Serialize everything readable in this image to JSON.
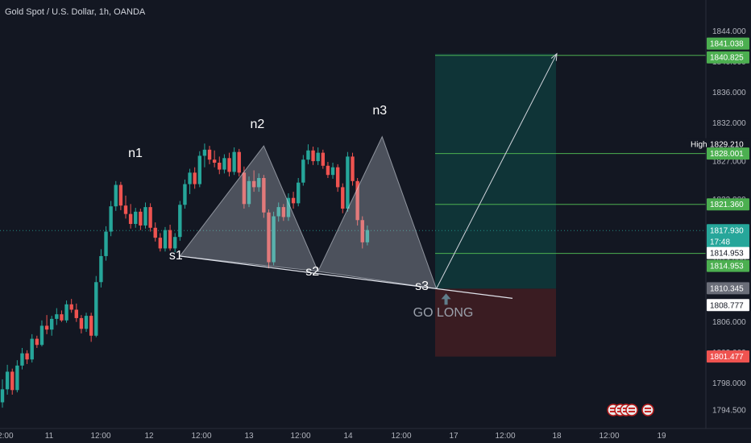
{
  "title": "Gold Spot / U.S. Dollar, 1h, OANDA",
  "chart_data": {
    "type": "candlestick",
    "symbol": "XAUUSD",
    "ylim": [
      1792.5,
      1847
    ],
    "y_ticks": [
      1844.0,
      1840.0,
      1836.0,
      1832.0,
      1827.0,
      1822.0,
      1818.0,
      1814.0,
      1810.0,
      1806.0,
      1802.0,
      1798.0,
      1794.5
    ],
    "x_ticks": [
      "12:00",
      "11",
      "12:00",
      "12",
      "12:00",
      "13",
      "12:00",
      "14",
      "12:00",
      "17",
      "12:00",
      "18",
      "12:00",
      "19"
    ],
    "ohlc": [
      [
        1795.5,
        1798.5,
        1794.8,
        1797.2
      ],
      [
        1797.2,
        1800.4,
        1796.5,
        1799.5
      ],
      [
        1799.5,
        1799.9,
        1796.5,
        1797.1
      ],
      [
        1797.1,
        1801.0,
        1796.8,
        1800.3
      ],
      [
        1800.3,
        1802.6,
        1799.8,
        1801.9
      ],
      [
        1801.9,
        1802.3,
        1800.5,
        1801.1
      ],
      [
        1801.1,
        1804.4,
        1800.7,
        1803.8
      ],
      [
        1803.8,
        1804.2,
        1802.6,
        1803.0
      ],
      [
        1803.0,
        1806.2,
        1802.8,
        1805.5
      ],
      [
        1805.5,
        1806.9,
        1804.4,
        1805.0
      ],
      [
        1805.0,
        1806.8,
        1804.2,
        1806.4
      ],
      [
        1806.4,
        1807.8,
        1805.6,
        1807.0
      ],
      [
        1807.0,
        1807.5,
        1806.0,
        1806.2
      ],
      [
        1806.2,
        1808.8,
        1805.9,
        1808.3
      ],
      [
        1808.3,
        1809.0,
        1807.2,
        1807.6
      ],
      [
        1807.6,
        1808.4,
        1806.0,
        1806.5
      ],
      [
        1806.5,
        1806.9,
        1804.5,
        1805.1
      ],
      [
        1805.1,
        1807.2,
        1804.7,
        1806.8
      ],
      [
        1806.8,
        1807.2,
        1803.4,
        1804.2
      ],
      [
        1804.2,
        1812.0,
        1804.0,
        1811.2
      ],
      [
        1811.2,
        1815.5,
        1810.5,
        1814.6
      ],
      [
        1814.6,
        1818.5,
        1814.0,
        1817.8
      ],
      [
        1817.8,
        1821.8,
        1817.2,
        1821.1
      ],
      [
        1821.1,
        1824.4,
        1820.5,
        1823.9
      ],
      [
        1823.9,
        1824.3,
        1820.6,
        1821.2
      ],
      [
        1821.2,
        1822.5,
        1819.5,
        1820.1
      ],
      [
        1820.1,
        1821.4,
        1818.2,
        1818.8
      ],
      [
        1818.8,
        1820.9,
        1818.3,
        1820.4
      ],
      [
        1820.4,
        1820.8,
        1818.0,
        1818.6
      ],
      [
        1818.6,
        1821.6,
        1818.2,
        1821.0
      ],
      [
        1821.0,
        1821.5,
        1817.8,
        1818.3
      ],
      [
        1818.3,
        1819.0,
        1816.5,
        1817.0
      ],
      [
        1817.0,
        1817.6,
        1815.2,
        1815.6
      ],
      [
        1815.6,
        1818.4,
        1815.2,
        1818.0
      ],
      [
        1818.0,
        1818.7,
        1815.3,
        1815.6
      ],
      [
        1815.6,
        1817.6,
        1815.1,
        1817.1
      ],
      [
        1817.1,
        1821.8,
        1816.6,
        1821.3
      ],
      [
        1821.3,
        1824.6,
        1820.8,
        1824.0
      ],
      [
        1824.0,
        1826.0,
        1822.7,
        1825.5
      ],
      [
        1825.5,
        1826.2,
        1823.4,
        1824.0
      ],
      [
        1824.0,
        1828.3,
        1823.6,
        1827.7
      ],
      [
        1827.7,
        1829.3,
        1826.2,
        1828.5
      ],
      [
        1828.5,
        1829.0,
        1826.6,
        1827.2
      ],
      [
        1827.2,
        1828.4,
        1826.2,
        1826.8
      ],
      [
        1826.8,
        1827.6,
        1825.3,
        1825.9
      ],
      [
        1825.9,
        1827.9,
        1825.4,
        1827.4
      ],
      [
        1827.4,
        1828.1,
        1825.0,
        1825.6
      ],
      [
        1825.6,
        1828.8,
        1825.2,
        1828.2
      ],
      [
        1828.2,
        1828.6,
        1825.0,
        1825.5
      ],
      [
        1825.5,
        1826.3,
        1820.8,
        1821.4
      ],
      [
        1821.4,
        1825.0,
        1821.0,
        1824.4
      ],
      [
        1824.4,
        1825.8,
        1823.0,
        1823.6
      ],
      [
        1823.6,
        1825.4,
        1823.0,
        1824.8
      ],
      [
        1824.8,
        1825.2,
        1819.6,
        1820.3
      ],
      [
        1820.3,
        1820.7,
        1813.0,
        1813.8
      ],
      [
        1813.8,
        1820.4,
        1813.4,
        1819.8
      ],
      [
        1819.8,
        1821.6,
        1819.1,
        1821.0
      ],
      [
        1821.0,
        1821.4,
        1819.2,
        1819.7
      ],
      [
        1819.7,
        1822.8,
        1819.2,
        1822.2
      ],
      [
        1822.2,
        1823.0,
        1820.8,
        1821.5
      ],
      [
        1821.5,
        1824.8,
        1821.1,
        1824.2
      ],
      [
        1824.2,
        1827.8,
        1823.8,
        1827.2
      ],
      [
        1827.2,
        1829.2,
        1826.6,
        1828.4
      ],
      [
        1828.4,
        1828.9,
        1826.5,
        1827.0
      ],
      [
        1827.0,
        1828.8,
        1826.5,
        1828.1
      ],
      [
        1828.1,
        1828.5,
        1826.0,
        1826.4
      ],
      [
        1826.4,
        1826.9,
        1824.8,
        1825.2
      ],
      [
        1825.2,
        1826.8,
        1824.7,
        1826.2
      ],
      [
        1826.2,
        1826.6,
        1823.0,
        1823.6
      ],
      [
        1823.6,
        1824.1,
        1820.2,
        1820.8
      ],
      [
        1820.8,
        1828.2,
        1820.4,
        1827.6
      ],
      [
        1827.6,
        1828.1,
        1823.8,
        1824.4
      ],
      [
        1824.4,
        1824.8,
        1818.6,
        1819.3
      ],
      [
        1819.3,
        1819.8,
        1815.6,
        1816.4
      ],
      [
        1816.4,
        1818.6,
        1816.0,
        1818.0
      ]
    ],
    "current_price": 1817.93,
    "countdown": "17:48",
    "high_label": "High",
    "high_price": "1829.210",
    "price_labels": [
      {
        "text": "1841.038",
        "price": 1841.038,
        "kind": "green"
      },
      {
        "text": "1840.825",
        "price": 1840.825,
        "kind": "green"
      },
      {
        "text": "1829.210",
        "price": 1829.21,
        "kind": "high"
      },
      {
        "text": "1828.001",
        "price": 1828.001,
        "kind": "green"
      },
      {
        "text": "1821.360",
        "price": 1821.36,
        "kind": "green"
      },
      {
        "text": "1817.930",
        "price": 1817.93,
        "kind": "teal"
      },
      {
        "text": "1814.953",
        "price": 1814.953,
        "kind": "white"
      },
      {
        "text": "1814.953",
        "price": 1814.953,
        "kind": "green"
      },
      {
        "text": "1810.345",
        "price": 1810.345,
        "kind": "grey"
      },
      {
        "text": "1808.777",
        "price": 1808.777,
        "kind": "white"
      },
      {
        "text": "1801.477",
        "price": 1801.477,
        "kind": "red"
      }
    ],
    "position": {
      "entry": 1810.345,
      "target": 1841.038,
      "stop": 1801.477
    },
    "target_lines": [
      1840.825,
      1828.001,
      1821.36,
      1814.953
    ],
    "pattern_labels": {
      "n1": "n1",
      "n2": "n2",
      "n3": "n3",
      "s1": "s1",
      "s2": "s2",
      "s3": "s3"
    },
    "pattern_points": {
      "s1": {
        "bar": 36,
        "price": 1814.6
      },
      "n2": {
        "bar": 53,
        "price": 1829.0
      },
      "s2": {
        "bar": 64,
        "price": 1812.6
      },
      "n3": {
        "bar": 77,
        "price": 1830.2
      },
      "s3": {
        "bar": 88,
        "price": 1810.345
      }
    },
    "call_to_action": "GO LONG",
    "colors": {
      "up": "#26a69a",
      "down": "#ef5350",
      "background": "#131722",
      "target_zone": "#0f3437",
      "stop_zone": "#3a1c22",
      "level_line": "#4caf50"
    }
  }
}
